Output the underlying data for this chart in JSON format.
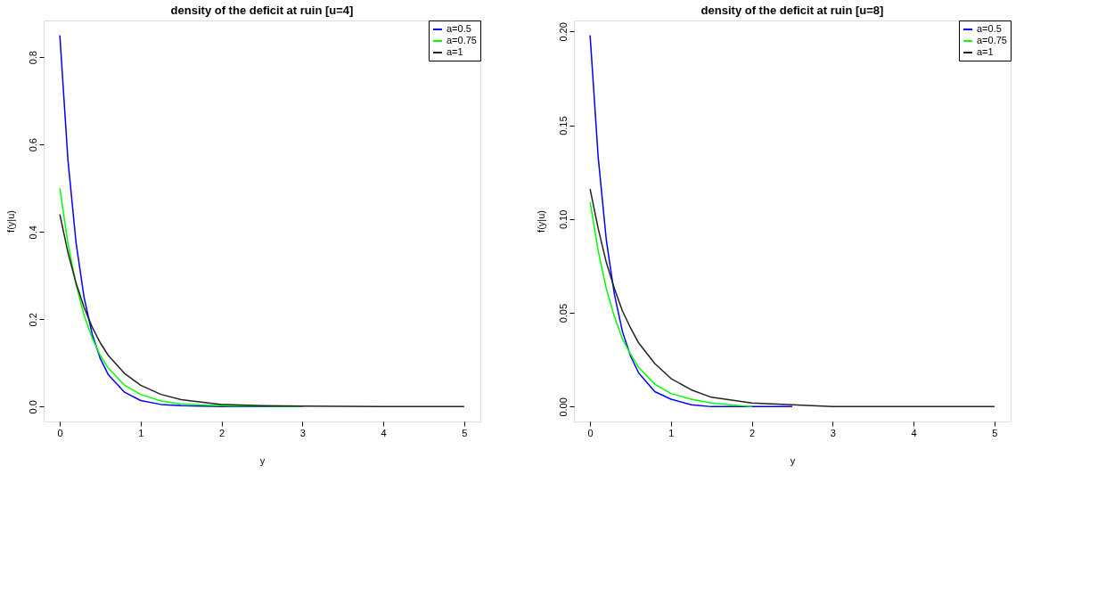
{
  "chart_data": [
    {
      "type": "line",
      "title": "density of the deficit at ruin [u=4]",
      "xlabel": "y",
      "ylabel": "f(y|u)",
      "xlim": [
        -0.2,
        5.2
      ],
      "xticks": [
        0,
        1,
        2,
        3,
        4,
        5
      ],
      "ylim": [
        -0.034,
        0.884
      ],
      "yticks": [
        {
          "value": 0,
          "label": "0.0"
        },
        0.2,
        0.4,
        0.6,
        0.8
      ],
      "grid": false,
      "legend": "top right",
      "line_style": "solid",
      "x": [
        0,
        0.1,
        0.2,
        0.3,
        0.4,
        0.5,
        0.6,
        0.8,
        1.0,
        1.25,
        1.5,
        2,
        2.5,
        3,
        4,
        5
      ],
      "series": [
        {
          "name": "a=0.5",
          "color": "#0000ff",
          "values": [
            0.85,
            0.565,
            0.376,
            0.25,
            0.166,
            0.11,
            0.073,
            0.033,
            0.014,
            0.005,
            0.002,
            0,
            0,
            0,
            null,
            null
          ]
        },
        {
          "name": "a=0.75",
          "color": "#00ff00",
          "values": [
            0.5,
            0.374,
            0.28,
            0.209,
            0.157,
            0.117,
            0.088,
            0.049,
            0.028,
            0.013,
            0.006,
            0.002,
            0.001,
            0,
            null,
            null
          ]
        },
        {
          "name": "a=1",
          "color": "#222222",
          "values": [
            0.44,
            0.353,
            0.283,
            0.227,
            0.182,
            0.146,
            0.117,
            0.076,
            0.049,
            0.028,
            0.016,
            0.005,
            0.002,
            0.001,
            0,
            0
          ]
        }
      ]
    },
    {
      "type": "line",
      "title": "density of the deficit at ruin [u=8]",
      "xlabel": "y",
      "ylabel": "f(y|u)",
      "xlim": [
        -0.2,
        5.2
      ],
      "xticks": [
        0,
        1,
        2,
        3,
        4,
        5
      ],
      "ylim": [
        -0.0079,
        0.2059
      ],
      "yticks": [
        {
          "value": 0,
          "label": "0.00"
        },
        0.05,
        {
          "value": 0.1,
          "label": "0.10"
        },
        0.15,
        {
          "value": 0.2,
          "label": "0.20"
        }
      ],
      "grid": false,
      "legend": "top right",
      "line_style": "solid",
      "x": [
        0,
        0.1,
        0.2,
        0.3,
        0.4,
        0.5,
        0.6,
        0.8,
        1.0,
        1.25,
        1.5,
        2,
        2.5,
        3,
        4,
        5
      ],
      "series": [
        {
          "name": "a=0.5",
          "color": "#0000ff",
          "values": [
            0.198,
            0.133,
            0.089,
            0.06,
            0.04,
            0.027,
            0.018,
            0.008,
            0.004,
            0.001,
            0,
            0,
            0,
            null,
            null,
            null
          ]
        },
        {
          "name": "a=0.75",
          "color": "#00ff00",
          "values": [
            0.109,
            0.083,
            0.063,
            0.048,
            0.036,
            0.028,
            0.021,
            0.012,
            0.007,
            0.004,
            0.002,
            0,
            null,
            null,
            null,
            null
          ]
        },
        {
          "name": "a=1",
          "color": "#222222",
          "values": [
            0.116,
            0.095,
            0.077,
            0.063,
            0.051,
            0.042,
            0.034,
            0.023,
            0.015,
            0.009,
            0.005,
            0.002,
            0.001,
            0,
            0,
            0
          ]
        }
      ]
    }
  ]
}
